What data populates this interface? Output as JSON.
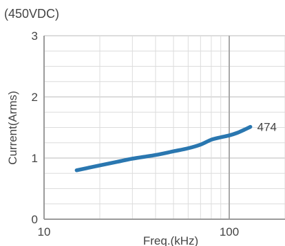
{
  "chart_data": {
    "type": "line",
    "title": "(450VDC)",
    "xlabel": "Freq.(kHz)",
    "ylabel": "Current(Arms)",
    "x_scale": "log",
    "xlim": [
      10,
      200
    ],
    "ylim": [
      0,
      3
    ],
    "x_tick_labels": [
      "10",
      "100"
    ],
    "y_tick_labels": [
      "0",
      "1",
      "2",
      "3"
    ],
    "grid": true,
    "series": [
      {
        "name": "474",
        "color": "#2a77b0",
        "x": [
          15,
          20,
          25,
          30,
          40,
          50,
          60,
          70,
          80,
          90,
          100,
          110,
          120,
          130
        ],
        "y": [
          0.8,
          0.88,
          0.94,
          0.99,
          1.05,
          1.11,
          1.16,
          1.22,
          1.3,
          1.34,
          1.37,
          1.41,
          1.46,
          1.51
        ]
      }
    ]
  }
}
